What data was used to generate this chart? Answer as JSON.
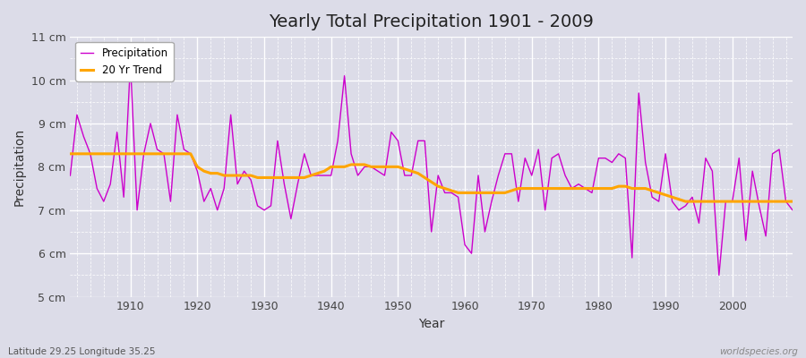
{
  "title": "Yearly Total Precipitation 1901 - 2009",
  "xlabel": "Year",
  "ylabel": "Precipitation",
  "bottom_left_label": "Latitude 29.25 Longitude 35.25",
  "bottom_right_label": "worldspecies.org",
  "ylim": [
    5,
    11
  ],
  "yticks": [
    5,
    6,
    7,
    8,
    9,
    10,
    11
  ],
  "ytick_labels": [
    "5 cm",
    "6 cm",
    "7 cm",
    "8 cm",
    "9 cm",
    "10 cm",
    "11 cm"
  ],
  "bg_color": "#dcdce8",
  "plot_bg_color": "#dcdce8",
  "precip_color": "#cc00cc",
  "trend_color": "#ffa500",
  "precip_label": "Precipitation",
  "trend_label": "20 Yr Trend",
  "years": [
    1901,
    1902,
    1903,
    1904,
    1905,
    1906,
    1907,
    1908,
    1909,
    1910,
    1911,
    1912,
    1913,
    1914,
    1915,
    1916,
    1917,
    1918,
    1919,
    1920,
    1921,
    1922,
    1923,
    1924,
    1925,
    1926,
    1927,
    1928,
    1929,
    1930,
    1931,
    1932,
    1933,
    1934,
    1935,
    1936,
    1937,
    1938,
    1939,
    1940,
    1941,
    1942,
    1943,
    1944,
    1945,
    1946,
    1947,
    1948,
    1949,
    1950,
    1951,
    1952,
    1953,
    1954,
    1955,
    1956,
    1957,
    1958,
    1959,
    1960,
    1961,
    1962,
    1963,
    1964,
    1965,
    1966,
    1967,
    1968,
    1969,
    1970,
    1971,
    1972,
    1973,
    1974,
    1975,
    1976,
    1977,
    1978,
    1979,
    1980,
    1981,
    1982,
    1983,
    1984,
    1985,
    1986,
    1987,
    1988,
    1989,
    1990,
    1991,
    1992,
    1993,
    1994,
    1995,
    1996,
    1997,
    1998,
    1999,
    2000,
    2001,
    2002,
    2003,
    2004,
    2005,
    2006,
    2007,
    2008,
    2009
  ],
  "precip": [
    7.8,
    9.2,
    8.7,
    8.3,
    7.5,
    7.2,
    7.6,
    8.8,
    7.3,
    10.4,
    7.0,
    8.3,
    9.0,
    8.4,
    8.3,
    7.2,
    9.2,
    8.4,
    8.3,
    7.9,
    7.2,
    7.5,
    7.0,
    7.5,
    9.2,
    7.6,
    7.9,
    7.7,
    7.1,
    7.0,
    7.1,
    8.6,
    7.6,
    6.8,
    7.6,
    8.3,
    7.8,
    7.8,
    7.8,
    7.8,
    8.6,
    10.1,
    8.3,
    7.8,
    8.0,
    8.0,
    7.9,
    7.8,
    8.8,
    8.6,
    7.8,
    7.8,
    8.6,
    8.6,
    6.5,
    7.8,
    7.4,
    7.4,
    7.3,
    6.2,
    6.0,
    7.8,
    6.5,
    7.2,
    7.8,
    8.3,
    8.3,
    7.2,
    8.2,
    7.8,
    8.4,
    7.0,
    8.2,
    8.3,
    7.8,
    7.5,
    7.6,
    7.5,
    7.4,
    8.2,
    8.2,
    8.1,
    8.3,
    8.2,
    5.9,
    9.7,
    8.1,
    7.3,
    7.2,
    8.3,
    7.2,
    7.0,
    7.1,
    7.3,
    6.7,
    8.2,
    7.9,
    5.5,
    7.2,
    7.2,
    8.2,
    6.3,
    7.9,
    7.1,
    6.4,
    8.3,
    8.4,
    7.2,
    7.0
  ],
  "trend": [
    8.3,
    8.3,
    8.3,
    8.3,
    8.3,
    8.3,
    8.3,
    8.3,
    8.3,
    8.3,
    8.3,
    8.3,
    8.3,
    8.3,
    8.3,
    8.3,
    8.3,
    8.3,
    8.3,
    8.0,
    7.9,
    7.85,
    7.85,
    7.8,
    7.8,
    7.8,
    7.8,
    7.8,
    7.75,
    7.75,
    7.75,
    7.75,
    7.75,
    7.75,
    7.75,
    7.75,
    7.8,
    7.85,
    7.9,
    8.0,
    8.0,
    8.0,
    8.05,
    8.05,
    8.05,
    8.0,
    8.0,
    8.0,
    8.0,
    8.0,
    7.95,
    7.9,
    7.85,
    7.75,
    7.65,
    7.55,
    7.5,
    7.45,
    7.4,
    7.4,
    7.4,
    7.4,
    7.4,
    7.4,
    7.4,
    7.4,
    7.45,
    7.5,
    7.5,
    7.5,
    7.5,
    7.5,
    7.5,
    7.5,
    7.5,
    7.5,
    7.5,
    7.5,
    7.5,
    7.5,
    7.5,
    7.5,
    7.55,
    7.55,
    7.5,
    7.5,
    7.5,
    7.45,
    7.4,
    7.35,
    7.3,
    7.25,
    7.2,
    7.2,
    7.2,
    7.2,
    7.2,
    7.2,
    7.2,
    7.2,
    7.2,
    7.2,
    7.2,
    7.2,
    7.2,
    7.2,
    7.2,
    7.2,
    7.2
  ]
}
